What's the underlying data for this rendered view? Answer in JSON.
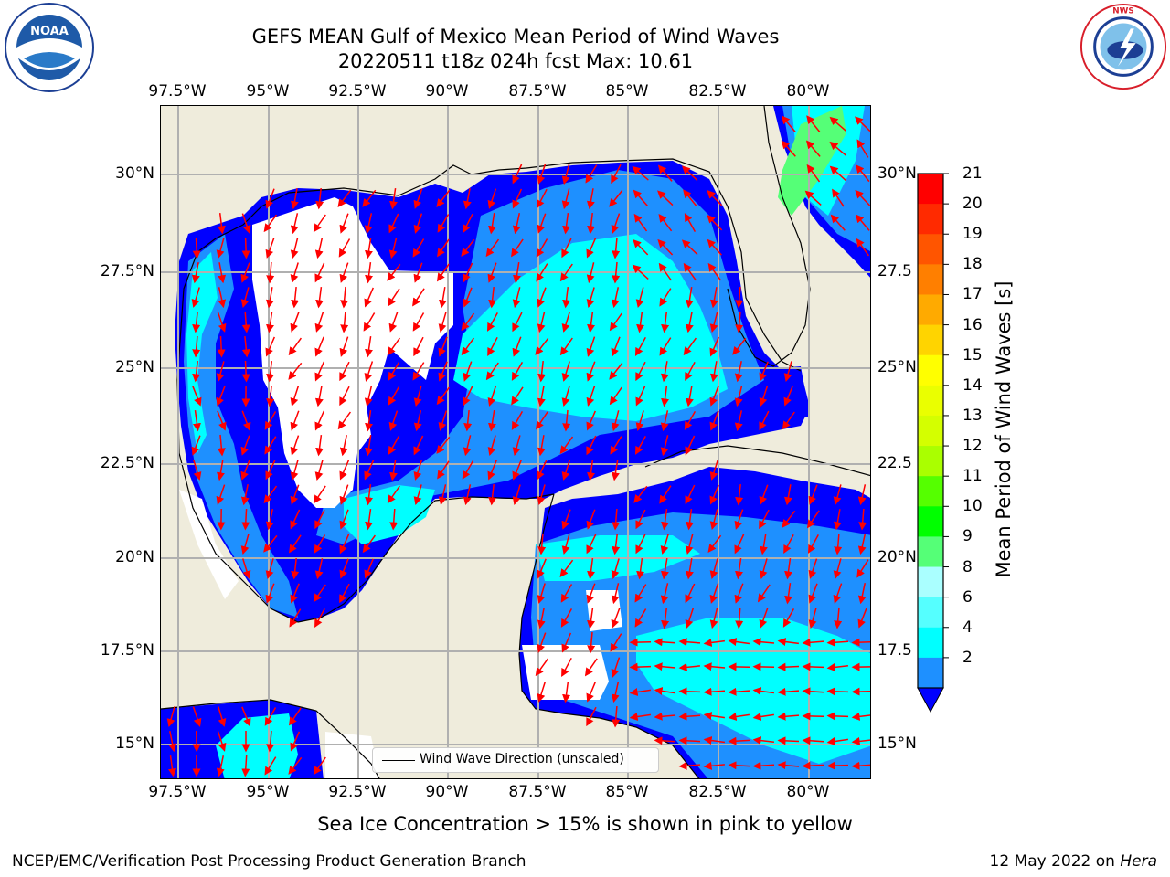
{
  "title": {
    "line1": "GEFS MEAN Gulf of Mexico Mean Period of Wind Waves",
    "line2": "20220511 t18z 024h fcst   Max: 10.61"
  },
  "logos": {
    "left": {
      "name": "noaa-logo",
      "text": "NOAA"
    },
    "right": {
      "name": "nws-logo",
      "text": "NATIONAL WEATHER SERVICE"
    }
  },
  "map": {
    "lon_labels": [
      "97.5°W",
      "95°W",
      "92.5°W",
      "90°W",
      "87.5°W",
      "85°W",
      "82.5°W",
      "80°W"
    ],
    "lat_labels_left": [
      "30°N",
      "27.5°N",
      "25°N",
      "22.5°N",
      "20°N",
      "17.5°N",
      "15°N"
    ],
    "lat_labels_right": [
      "30°N",
      "27.5",
      "25°N",
      "22.5",
      "20°N",
      "17.5",
      "15°N"
    ],
    "legend_label": "Wind Wave Direction (unscaled)",
    "land_color": "#efecdc",
    "no_data_color": "#ffffff",
    "arrow_color": "#ff0000"
  },
  "colorbar": {
    "title": "Mean Period of Wind Waves [s]",
    "tick_labels": [
      "21",
      "20",
      "19",
      "18",
      "17",
      "16",
      "15",
      "14",
      "13",
      "12",
      "11",
      "10",
      "9",
      "8",
      "6",
      "4",
      "2"
    ],
    "colors_top_to_bottom": [
      "#ff0000",
      "#ff2a00",
      "#ff5500",
      "#ff7f00",
      "#ffaa00",
      "#ffd400",
      "#ffff00",
      "#eaff00",
      "#d4ff00",
      "#aaff00",
      "#55ff00",
      "#00ff00",
      "#55ff77",
      "#aaffff",
      "#55ffff",
      "#00ffff",
      "#1e90ff"
    ],
    "extend_color": "#0000ff"
  },
  "caption": "Sea Ice Concentration > 15% is shown in pink to yellow",
  "footer": {
    "left": "NCEP/EMC/Verification Post Processing Product Generation Branch",
    "right_date": "12 May 2022 on ",
    "right_host": "Hera"
  }
}
